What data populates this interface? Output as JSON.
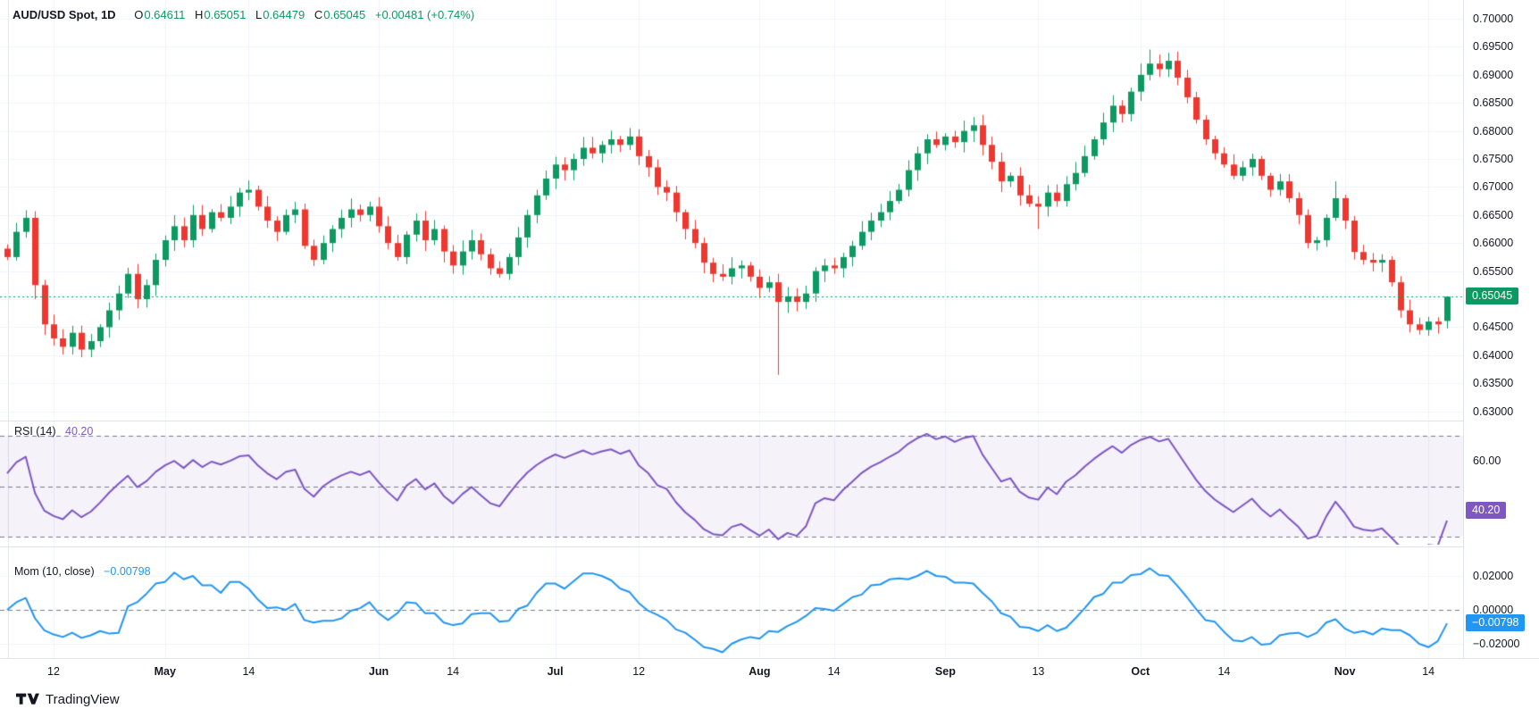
{
  "header": {
    "symbol": "AUD/USD Spot, 1D",
    "o_label": "O",
    "o_value": "0.64611",
    "h_label": "H",
    "h_value": "0.65051",
    "l_label": "L",
    "l_value": "0.64479",
    "c_label": "C",
    "c_value": "0.65045",
    "change": "+0.00481 (+0.74%)"
  },
  "panes": {
    "rsi": {
      "title": "RSI (14)",
      "value": "40.20"
    },
    "mom": {
      "title": "Mom (10, close)",
      "value": "−0.00798"
    }
  },
  "axis": {
    "price_labels": [
      {
        "text": "0.70000",
        "value": 0.7
      },
      {
        "text": "0.69500",
        "value": 0.695
      },
      {
        "text": "0.69000",
        "value": 0.69
      },
      {
        "text": "0.68500",
        "value": 0.685
      },
      {
        "text": "0.68000",
        "value": 0.68
      },
      {
        "text": "0.67500",
        "value": 0.675
      },
      {
        "text": "0.67000",
        "value": 0.67
      },
      {
        "text": "0.66500",
        "value": 0.665
      },
      {
        "text": "0.66000",
        "value": 0.66
      },
      {
        "text": "0.65500",
        "value": 0.655
      },
      {
        "text": "0.64500",
        "value": 0.645
      },
      {
        "text": "0.64000",
        "value": 0.64
      },
      {
        "text": "0.63500",
        "value": 0.635
      },
      {
        "text": "0.63000",
        "value": 0.63
      }
    ],
    "price_badge": {
      "text": "0.65045",
      "value": 0.65045
    },
    "rsi_labels": [
      {
        "text": "60.00",
        "value": 60
      }
    ],
    "rsi_badge": {
      "text": "40.20",
      "value": 40.2
    },
    "mom_labels": [
      {
        "text": "0.02000",
        "value": 0.02
      },
      {
        "text": "0.00000",
        "value": 0.0
      },
      {
        "text": "−0.02000",
        "value": -0.02
      }
    ],
    "mom_badge": {
      "text": "−0.00798",
      "value": -0.00798
    },
    "time_labels": [
      {
        "text": "12",
        "index": 5,
        "bold": false
      },
      {
        "text": "May",
        "index": 17,
        "bold": true
      },
      {
        "text": "14",
        "index": 26,
        "bold": false
      },
      {
        "text": "Jun",
        "index": 40,
        "bold": true
      },
      {
        "text": "14",
        "index": 48,
        "bold": false
      },
      {
        "text": "Jul",
        "index": 59,
        "bold": true
      },
      {
        "text": "12",
        "index": 68,
        "bold": false
      },
      {
        "text": "Aug",
        "index": 81,
        "bold": true
      },
      {
        "text": "14",
        "index": 89,
        "bold": false
      },
      {
        "text": "Sep",
        "index": 101,
        "bold": true
      },
      {
        "text": "13",
        "index": 111,
        "bold": false
      },
      {
        "text": "Oct",
        "index": 122,
        "bold": true
      },
      {
        "text": "14",
        "index": 131,
        "bold": false
      },
      {
        "text": "Nov",
        "index": 144,
        "bold": true
      },
      {
        "text": "14",
        "index": 153,
        "bold": false
      }
    ]
  },
  "chart_data": {
    "type": "candlestick",
    "title": "AUD/USD Spot, 1D",
    "interval": "1D",
    "ohlc_display": {
      "open": 0.64611,
      "high": 0.65051,
      "low": 0.64479,
      "close": 0.65045,
      "change": 0.00481,
      "change_pct": 0.74
    },
    "price_grid_step": 0.005,
    "visible_price_range": [
      0.63,
      0.703
    ],
    "first_open": 0.659,
    "closes": [
      0.6575,
      0.662,
      0.6645,
      0.6525,
      0.6455,
      0.643,
      0.6415,
      0.644,
      0.641,
      0.6425,
      0.645,
      0.648,
      0.651,
      0.6545,
      0.65,
      0.6525,
      0.657,
      0.6605,
      0.663,
      0.6605,
      0.665,
      0.6625,
      0.6655,
      0.6645,
      0.6665,
      0.669,
      0.6695,
      0.6665,
      0.664,
      0.662,
      0.665,
      0.666,
      0.6595,
      0.657,
      0.66,
      0.6625,
      0.6645,
      0.666,
      0.665,
      0.6665,
      0.663,
      0.66,
      0.6575,
      0.6615,
      0.664,
      0.6605,
      0.6625,
      0.6585,
      0.656,
      0.6585,
      0.6605,
      0.658,
      0.6555,
      0.6545,
      0.6575,
      0.661,
      0.665,
      0.6685,
      0.6715,
      0.674,
      0.673,
      0.675,
      0.677,
      0.676,
      0.6775,
      0.6785,
      0.6775,
      0.679,
      0.6755,
      0.6735,
      0.67,
      0.669,
      0.6655,
      0.6625,
      0.66,
      0.6565,
      0.6545,
      0.654,
      0.6555,
      0.656,
      0.654,
      0.652,
      0.653,
      0.6495,
      0.6505,
      0.6495,
      0.651,
      0.655,
      0.656,
      0.6555,
      0.6575,
      0.6595,
      0.662,
      0.664,
      0.6655,
      0.6675,
      0.6695,
      0.673,
      0.676,
      0.6785,
      0.6775,
      0.679,
      0.678,
      0.68,
      0.681,
      0.6775,
      0.6745,
      0.671,
      0.672,
      0.6685,
      0.667,
      0.6665,
      0.669,
      0.6675,
      0.6705,
      0.6725,
      0.6755,
      0.6785,
      0.6815,
      0.6845,
      0.683,
      0.687,
      0.69,
      0.692,
      0.691,
      0.6925,
      0.6895,
      0.686,
      0.682,
      0.6785,
      0.676,
      0.674,
      0.672,
      0.6735,
      0.675,
      0.672,
      0.6695,
      0.671,
      0.668,
      0.665,
      0.66,
      0.6605,
      0.6645,
      0.668,
      0.664,
      0.6584,
      0.657,
      0.6565,
      0.657,
      0.653,
      0.648,
      0.6455,
      0.6445,
      0.646,
      0.6455,
      0.65045
    ],
    "wick_overrides": {
      "3": {
        "low": 0.65
      },
      "67": {
        "high": 0.6805
      },
      "83": {
        "low": 0.6365
      },
      "104": {
        "high": 0.6825
      },
      "111": {
        "low": 0.6625
      },
      "123": {
        "high": 0.6945
      },
      "143": {
        "high": 0.671
      },
      "155": {
        "open": 0.64611,
        "high": 0.65051,
        "low": 0.64479
      }
    },
    "last_price_line": 0.65045,
    "indicators": [
      {
        "name": "RSI",
        "period": 14,
        "last_value": 40.2,
        "dashed_levels": [
          70,
          50,
          30
        ],
        "visible_axis_label": 60
      },
      {
        "name": "Momentum",
        "period": 10,
        "source": "close",
        "last_value": -0.00798,
        "dashed_levels": [
          0
        ],
        "axis_labels": [
          0.02,
          0,
          -0.02
        ]
      }
    ]
  },
  "footer": {
    "brand": "TradingView"
  },
  "colors": {
    "up": "#0d9a62",
    "down": "#ef372f",
    "rsi_line": "#7e57c2",
    "rsi_band_bg": "rgba(126,87,194,0.08)",
    "mom_line": "#2196f3",
    "grid": "#f0f3fa",
    "separator": "#e0e3eb",
    "dashed": "#787b86",
    "text": "#131722",
    "badge_text": "#ffffff"
  }
}
